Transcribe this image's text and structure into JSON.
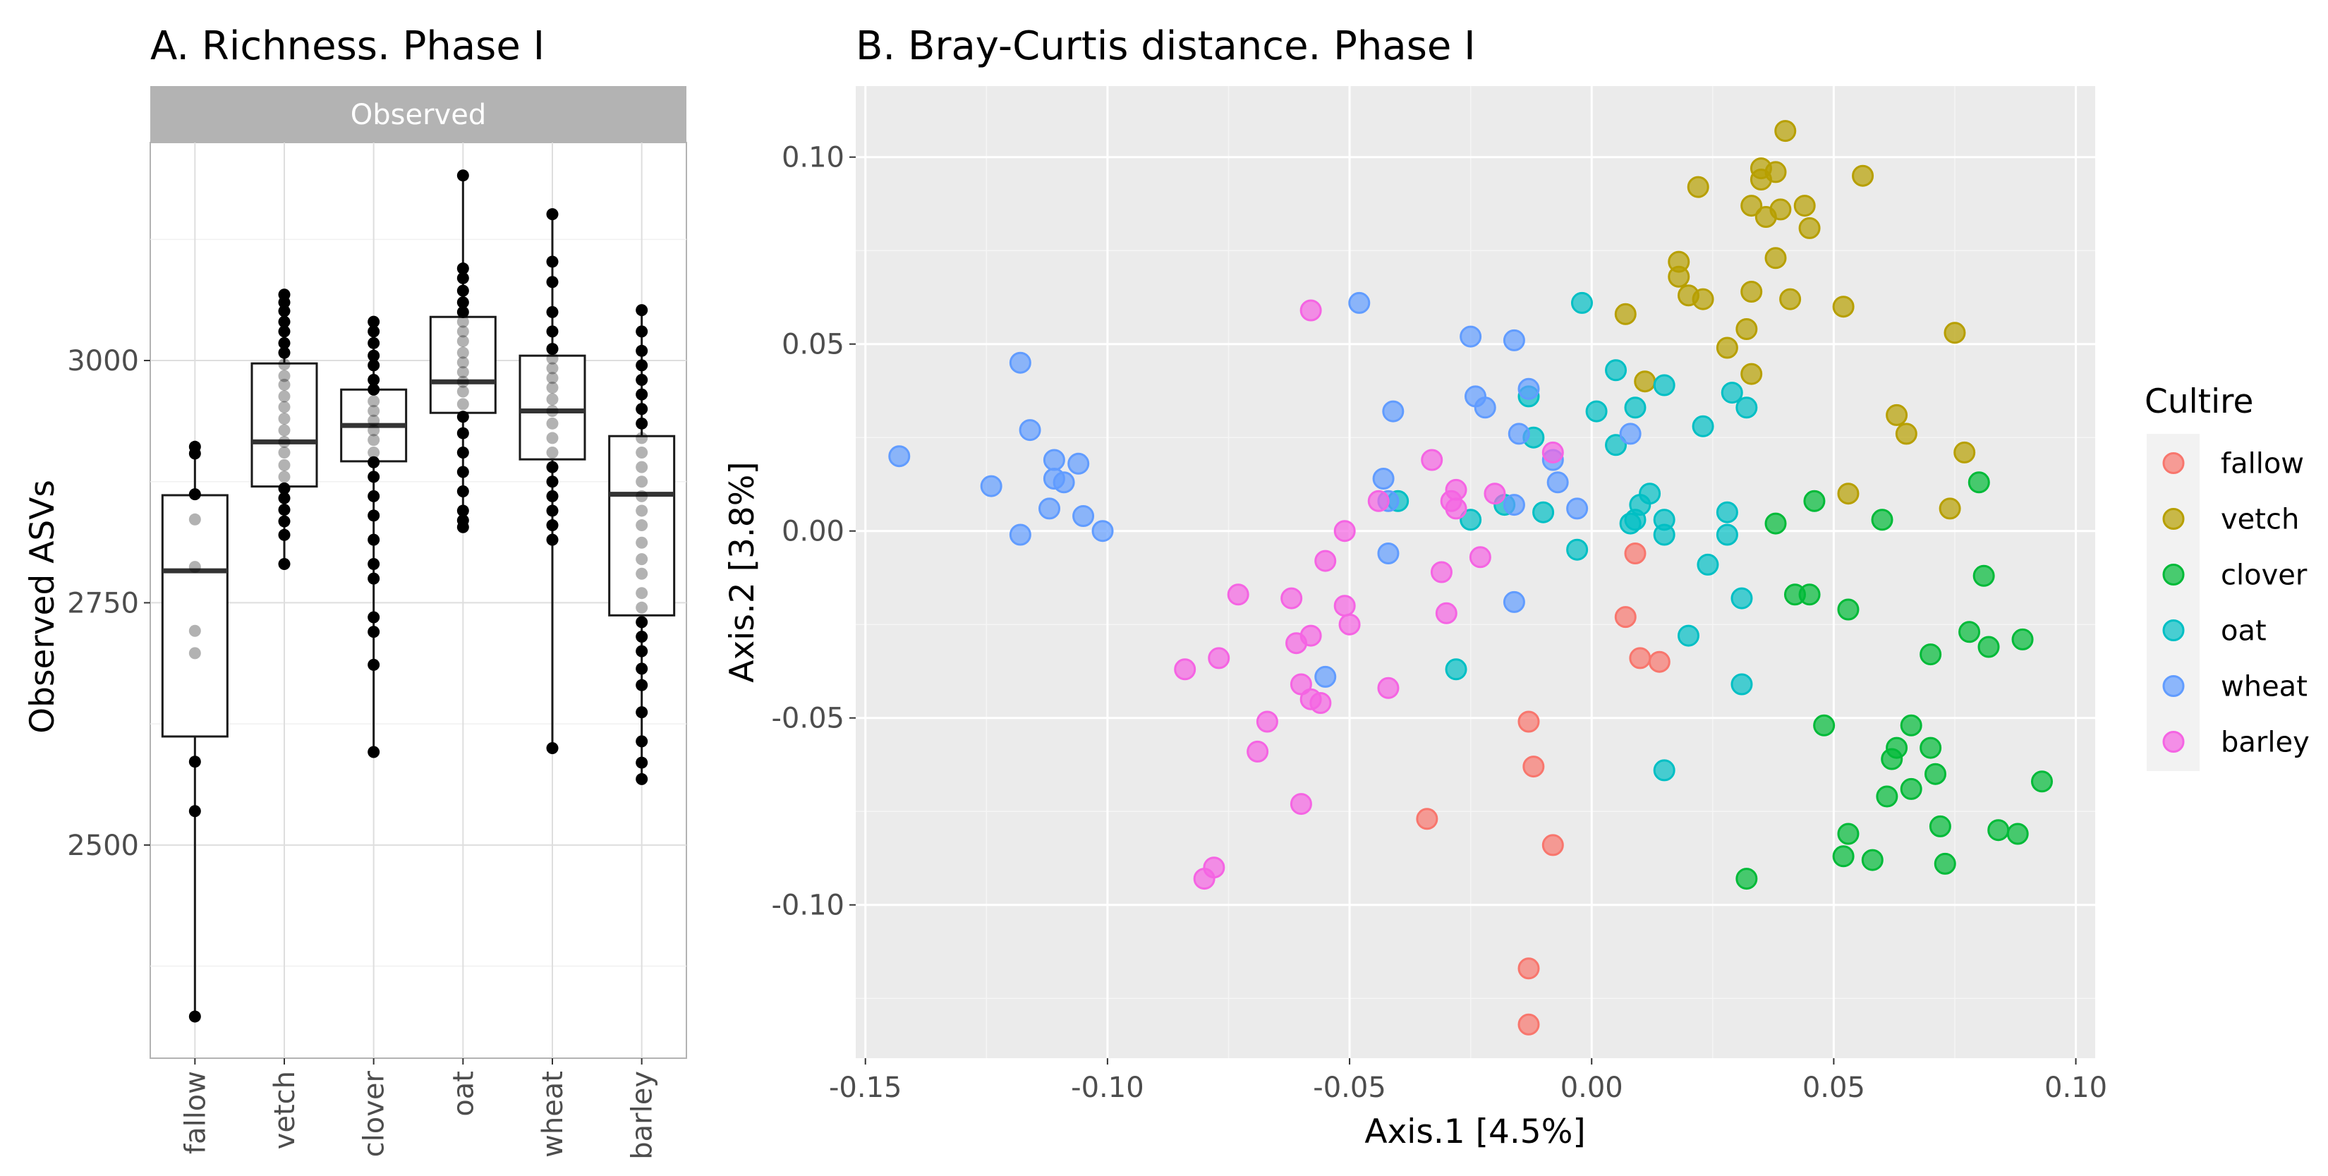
{
  "chart_data": [
    {
      "type": "boxplot",
      "title": "A. Richness. Phase I",
      "facet_label": "Observed",
      "xlabel": "",
      "ylabel": "Observed ASVs",
      "ylim": [
        2280,
        3225
      ],
      "yticks": [
        2500,
        2750,
        3000
      ],
      "categories": [
        "fallow",
        "vetch",
        "clover",
        "oat",
        "wheat",
        "barley"
      ],
      "boxes": [
        {
          "category": "fallow",
          "q1": 2612,
          "median": 2783,
          "q3": 2861,
          "whisker_low": 2323,
          "whisker_high": 2911
        },
        {
          "category": "vetch",
          "q1": 2870,
          "median": 2916,
          "q3": 2997,
          "whisker_low": 2790,
          "whisker_high": 3068
        },
        {
          "category": "clover",
          "q1": 2896,
          "median": 2933,
          "q3": 2970,
          "whisker_low": 2596,
          "whisker_high": 3040
        },
        {
          "category": "oat",
          "q1": 2946,
          "median": 2978,
          "q3": 3045,
          "whisker_low": 2828,
          "whisker_high": 3191
        },
        {
          "category": "wheat",
          "q1": 2898,
          "median": 2948,
          "q3": 3005,
          "whisker_low": 2600,
          "whisker_high": 3151
        },
        {
          "category": "barley",
          "q1": 2737,
          "median": 2862,
          "q3": 2922,
          "whisker_low": 2568,
          "whisker_high": 3052
        }
      ],
      "points": [
        {
          "category": "fallow",
          "values": [
            2911,
            2904,
            2862,
            2836,
            2787,
            2721,
            2698,
            2586,
            2535,
            2323
          ]
        },
        {
          "category": "vetch",
          "values": [
            3068,
            3060,
            3051,
            3040,
            3030,
            3018,
            3008,
            2996,
            2984,
            2975,
            2963,
            2952,
            2940,
            2928,
            2916,
            2905,
            2892,
            2880,
            2868,
            2858,
            2846,
            2834,
            2820,
            2790
          ]
        },
        {
          "category": "clover",
          "values": [
            3040,
            3030,
            3018,
            3005,
            2995,
            2980,
            2970,
            2958,
            2948,
            2938,
            2928,
            2918,
            2905,
            2895,
            2880,
            2860,
            2840,
            2815,
            2790,
            2775,
            2735,
            2720,
            2686,
            2596
          ]
        },
        {
          "category": "oat",
          "values": [
            3191,
            3095,
            3085,
            3072,
            3060,
            3050,
            3040,
            3030,
            3020,
            3008,
            2998,
            2988,
            2978,
            2968,
            2955,
            2942,
            2925,
            2905,
            2885,
            2865,
            2845,
            2835,
            2828
          ]
        },
        {
          "category": "wheat",
          "values": [
            3151,
            3102,
            3081,
            3050,
            3030,
            3012,
            3002,
            2992,
            2982,
            2972,
            2960,
            2948,
            2935,
            2920,
            2905,
            2890,
            2875,
            2860,
            2845,
            2830,
            2815,
            2600
          ]
        },
        {
          "category": "barley",
          "values": [
            3052,
            3030,
            3010,
            2995,
            2980,
            2965,
            2950,
            2935,
            2920,
            2905,
            2890,
            2875,
            2860,
            2845,
            2830,
            2812,
            2795,
            2780,
            2760,
            2745,
            2730,
            2715,
            2700,
            2682,
            2665,
            2637,
            2607,
            2585,
            2568
          ]
        }
      ]
    },
    {
      "type": "scatter",
      "title": "B. Bray-Curtis distance. Phase I",
      "xlabel": "Axis.1   [4.5%]",
      "ylabel": "Axis.2   [3.8%]",
      "xlim": [
        -0.152,
        0.104
      ],
      "ylim": [
        -0.141,
        0.119
      ],
      "xticks": [
        -0.15,
        -0.1,
        -0.05,
        0.0,
        0.05,
        0.1
      ],
      "xtick_labels": [
        "-0.15",
        "-0.10",
        "-0.05",
        "0.00",
        "0.05",
        "0.10"
      ],
      "yticks": [
        -0.1,
        -0.05,
        0.0,
        0.05,
        0.1
      ],
      "ytick_labels": [
        "-0.10",
        "-0.05",
        "0.00",
        "0.05",
        "0.10"
      ],
      "legend_title": "Cultire",
      "legend_position": "right",
      "series": [
        {
          "name": "fallow",
          "color": "#F8766D",
          "points": [
            [
              0.009,
              -0.006
            ],
            [
              0.007,
              -0.023
            ],
            [
              0.01,
              -0.034
            ],
            [
              0.014,
              -0.035
            ],
            [
              -0.013,
              -0.051
            ],
            [
              -0.012,
              -0.063
            ],
            [
              -0.008,
              -0.084
            ],
            [
              -0.034,
              -0.077
            ],
            [
              -0.013,
              -0.117
            ],
            [
              -0.013,
              -0.132
            ]
          ]
        },
        {
          "name": "vetch",
          "color": "#B79F00",
          "points": [
            [
              0.04,
              0.107
            ],
            [
              0.056,
              0.095
            ],
            [
              0.035,
              0.097
            ],
            [
              0.038,
              0.096
            ],
            [
              0.035,
              0.094
            ],
            [
              0.022,
              0.092
            ],
            [
              0.033,
              0.087
            ],
            [
              0.036,
              0.084
            ],
            [
              0.039,
              0.086
            ],
            [
              0.044,
              0.087
            ],
            [
              0.045,
              0.081
            ],
            [
              0.038,
              0.073
            ],
            [
              0.018,
              0.072
            ],
            [
              0.018,
              0.068
            ],
            [
              0.02,
              0.063
            ],
            [
              0.023,
              0.062
            ],
            [
              0.033,
              0.064
            ],
            [
              0.041,
              0.062
            ],
            [
              0.052,
              0.06
            ],
            [
              0.007,
              0.058
            ],
            [
              0.032,
              0.054
            ],
            [
              0.028,
              0.049
            ],
            [
              0.075,
              0.053
            ],
            [
              0.033,
              0.042
            ],
            [
              0.011,
              0.04
            ],
            [
              0.063,
              0.031
            ],
            [
              0.065,
              0.026
            ],
            [
              0.077,
              0.021
            ],
            [
              0.053,
              0.01
            ],
            [
              0.074,
              0.006
            ]
          ]
        },
        {
          "name": "clover",
          "color": "#00BA38",
          "points": [
            [
              0.08,
              0.013
            ],
            [
              0.046,
              0.008
            ],
            [
              0.06,
              0.003
            ],
            [
              0.038,
              0.002
            ],
            [
              0.081,
              -0.012
            ],
            [
              0.042,
              -0.017
            ],
            [
              0.045,
              -0.017
            ],
            [
              0.053,
              -0.021
            ],
            [
              0.078,
              -0.027
            ],
            [
              0.089,
              -0.029
            ],
            [
              0.082,
              -0.031
            ],
            [
              0.07,
              -0.033
            ],
            [
              0.048,
              -0.052
            ],
            [
              0.066,
              -0.052
            ],
            [
              0.07,
              -0.058
            ],
            [
              0.063,
              -0.058
            ],
            [
              0.062,
              -0.061
            ],
            [
              0.071,
              -0.065
            ],
            [
              0.093,
              -0.067
            ],
            [
              0.066,
              -0.069
            ],
            [
              0.061,
              -0.071
            ],
            [
              0.053,
              -0.081
            ],
            [
              0.072,
              -0.079
            ],
            [
              0.084,
              -0.08
            ],
            [
              0.088,
              -0.081
            ],
            [
              0.052,
              -0.087
            ],
            [
              0.058,
              -0.088
            ],
            [
              0.073,
              -0.089
            ],
            [
              0.032,
              -0.093
            ]
          ]
        },
        {
          "name": "oat",
          "color": "#00BFC4",
          "points": [
            [
              -0.002,
              0.061
            ],
            [
              0.005,
              0.043
            ],
            [
              0.015,
              0.039
            ],
            [
              -0.013,
              0.036
            ],
            [
              0.009,
              0.033
            ],
            [
              0.001,
              0.032
            ],
            [
              0.029,
              0.037
            ],
            [
              0.032,
              0.033
            ],
            [
              -0.012,
              0.025
            ],
            [
              0.023,
              0.028
            ],
            [
              0.005,
              0.023
            ],
            [
              -0.018,
              0.007
            ],
            [
              -0.01,
              0.005
            ],
            [
              0.01,
              0.007
            ],
            [
              0.012,
              0.01
            ],
            [
              0.009,
              0.003
            ],
            [
              0.008,
              0.002
            ],
            [
              0.015,
              0.003
            ],
            [
              -0.04,
              0.008
            ],
            [
              -0.025,
              0.003
            ],
            [
              0.028,
              0.005
            ],
            [
              0.015,
              -0.001
            ],
            [
              0.028,
              -0.001
            ],
            [
              -0.003,
              -0.005
            ],
            [
              0.024,
              -0.009
            ],
            [
              0.031,
              -0.018
            ],
            [
              0.02,
              -0.028
            ],
            [
              -0.028,
              -0.037
            ],
            [
              0.031,
              -0.041
            ],
            [
              0.015,
              -0.064
            ]
          ]
        },
        {
          "name": "wheat",
          "color": "#619CFF",
          "points": [
            [
              -0.048,
              0.061
            ],
            [
              -0.025,
              0.052
            ],
            [
              -0.016,
              0.051
            ],
            [
              -0.118,
              0.045
            ],
            [
              -0.041,
              0.032
            ],
            [
              -0.013,
              0.038
            ],
            [
              -0.024,
              0.036
            ],
            [
              -0.022,
              0.033
            ],
            [
              -0.015,
              0.026
            ],
            [
              -0.116,
              0.027
            ],
            [
              -0.111,
              0.019
            ],
            [
              -0.106,
              0.018
            ],
            [
              -0.143,
              0.02
            ],
            [
              -0.111,
              0.014
            ],
            [
              -0.109,
              0.013
            ],
            [
              -0.124,
              0.012
            ],
            [
              -0.112,
              0.006
            ],
            [
              -0.105,
              0.004
            ],
            [
              -0.101,
              0.0
            ],
            [
              -0.118,
              -0.001
            ],
            [
              -0.008,
              0.019
            ],
            [
              -0.007,
              0.013
            ],
            [
              0.008,
              0.026
            ],
            [
              -0.043,
              0.014
            ],
            [
              -0.042,
              0.008
            ],
            [
              -0.016,
              0.007
            ],
            [
              -0.003,
              0.006
            ],
            [
              -0.042,
              -0.006
            ],
            [
              -0.016,
              -0.019
            ],
            [
              -0.055,
              -0.039
            ]
          ]
        },
        {
          "name": "barley",
          "color": "#F564E3",
          "points": [
            [
              -0.058,
              0.059
            ],
            [
              -0.008,
              0.021
            ],
            [
              -0.033,
              0.019
            ],
            [
              -0.028,
              0.011
            ],
            [
              -0.02,
              0.01
            ],
            [
              -0.029,
              0.008
            ],
            [
              -0.044,
              0.008
            ],
            [
              -0.028,
              0.006
            ],
            [
              -0.051,
              0.0
            ],
            [
              -0.055,
              -0.008
            ],
            [
              -0.023,
              -0.007
            ],
            [
              -0.031,
              -0.011
            ],
            [
              -0.073,
              -0.017
            ],
            [
              -0.062,
              -0.018
            ],
            [
              -0.051,
              -0.02
            ],
            [
              -0.03,
              -0.022
            ],
            [
              -0.05,
              -0.025
            ],
            [
              -0.058,
              -0.028
            ],
            [
              -0.061,
              -0.03
            ],
            [
              -0.077,
              -0.034
            ],
            [
              -0.084,
              -0.037
            ],
            [
              -0.06,
              -0.041
            ],
            [
              -0.042,
              -0.042
            ],
            [
              -0.058,
              -0.045
            ],
            [
              -0.056,
              -0.046
            ],
            [
              -0.067,
              -0.051
            ],
            [
              -0.069,
              -0.059
            ],
            [
              -0.06,
              -0.073
            ],
            [
              -0.078,
              -0.09
            ],
            [
              -0.08,
              -0.093
            ]
          ]
        }
      ]
    }
  ]
}
